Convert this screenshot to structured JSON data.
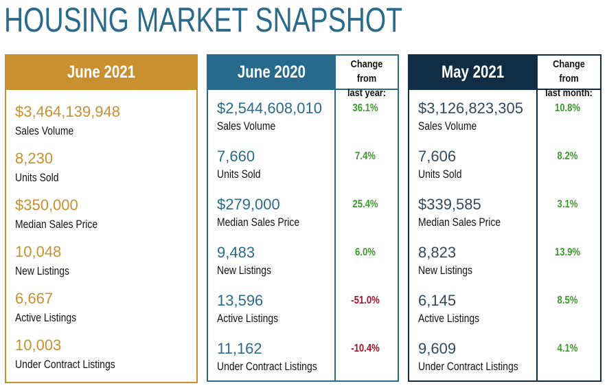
{
  "title": "HOUSING MARKET SNAPSHOT",
  "panels": [
    {
      "header": "June 2021",
      "rows": [
        {
          "value": "$3,464,139,948",
          "label": "Sales Volume"
        },
        {
          "value": "8,230",
          "label": "Units Sold"
        },
        {
          "value": "$350,000",
          "label": "Median Sales Price"
        },
        {
          "value": "10,048",
          "label": "New Listings"
        },
        {
          "value": "6,667",
          "label": "Active Listings"
        },
        {
          "value": "10,003",
          "label": "Under Contract Listings"
        }
      ]
    },
    {
      "header": "June 2020",
      "change_header": [
        "Change from",
        "last year:"
      ],
      "rows": [
        {
          "value": "$2,544,608,010",
          "label": "Sales Volume",
          "change": "36.1%"
        },
        {
          "value": "7,660",
          "label": "Units Sold",
          "change": "7.4%"
        },
        {
          "value": "$279,000",
          "label": "Median Sales Price",
          "change": "25.4%"
        },
        {
          "value": "9,483",
          "label": "New Listings",
          "change": "6.0%"
        },
        {
          "value": "13,596",
          "label": "Active Listings",
          "change": "-51.0%"
        },
        {
          "value": "11,162",
          "label": "Under Contract Listings",
          "change": "-10.4%"
        }
      ]
    },
    {
      "header": "May 2021",
      "change_header": [
        "Change from",
        "last month:"
      ],
      "rows": [
        {
          "value": "$3,126,823,305",
          "label": "Sales Volume",
          "change": "10.8%"
        },
        {
          "value": "7,606",
          "label": "Units Sold",
          "change": "8.2%"
        },
        {
          "value": "$339,585",
          "label": "Median Sales Price",
          "change": "3.1%"
        },
        {
          "value": "8,823",
          "label": "New Listings",
          "change": "13.9%"
        },
        {
          "value": "6,145",
          "label": "Active Listings",
          "change": "8.5%"
        },
        {
          "value": "9,609",
          "label": "Under Contract Listings",
          "change": "4.1%"
        }
      ]
    }
  ]
}
